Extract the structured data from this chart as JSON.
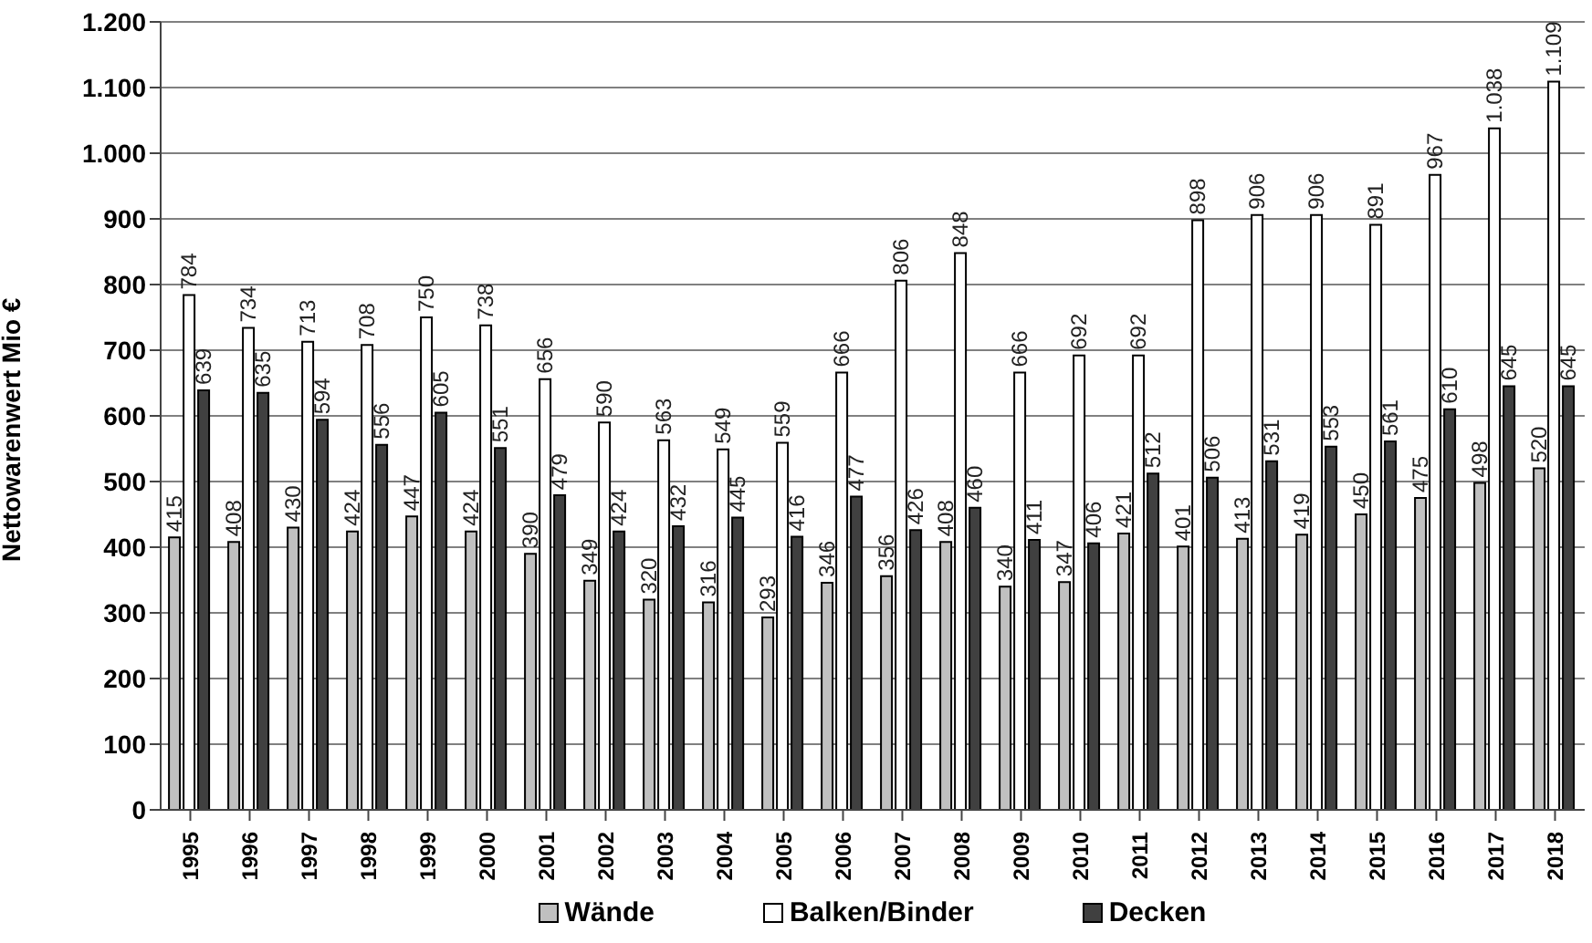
{
  "chart_data": {
    "type": "bar",
    "ylabel": "Nettowarenwert Mio €",
    "categories": [
      "1995",
      "1996",
      "1997",
      "1998",
      "1999",
      "2000",
      "2001",
      "2002",
      "2003",
      "2004",
      "2005",
      "2006",
      "2007",
      "2008",
      "2009",
      "2010",
      "2011",
      "2012",
      "2013",
      "2014",
      "2015",
      "2016",
      "2017",
      "2018"
    ],
    "series": [
      {
        "name": "Wände",
        "color": "#c0c0c0",
        "values": [
          415,
          408,
          430,
          424,
          447,
          424,
          390,
          349,
          320,
          316,
          293,
          346,
          356,
          408,
          340,
          347,
          421,
          401,
          413,
          419,
          450,
          475,
          498,
          520
        ],
        "value_labels": [
          "415",
          "408",
          "430",
          "424",
          "447",
          "424",
          "390",
          "349",
          "320",
          "316",
          "293",
          "346",
          "356",
          "408",
          "340",
          "347",
          "421",
          "401",
          "413",
          "419",
          "450",
          "475",
          "498",
          "520"
        ]
      },
      {
        "name": "Balken/Binder",
        "color": "#ffffff",
        "values": [
          784,
          734,
          713,
          708,
          750,
          738,
          656,
          590,
          563,
          549,
          559,
          666,
          806,
          848,
          666,
          692,
          692,
          898,
          906,
          906,
          891,
          967,
          1038,
          1109
        ],
        "value_labels": [
          "784",
          "734",
          "713",
          "708",
          "750",
          "738",
          "656",
          "590",
          "563",
          "549",
          "559",
          "666",
          "806",
          "848",
          "666",
          "692",
          "692",
          "898",
          "906",
          "906",
          "891",
          "967",
          "1.038",
          "1.109"
        ]
      },
      {
        "name": "Decken",
        "color": "#404040",
        "values": [
          639,
          635,
          594,
          556,
          605,
          551,
          479,
          424,
          432,
          445,
          416,
          477,
          426,
          460,
          411,
          406,
          512,
          506,
          531,
          553,
          561,
          610,
          645,
          645
        ],
        "value_labels": [
          "639",
          "635",
          "594",
          "556",
          "605",
          "551",
          "479",
          "424",
          "432",
          "445",
          "416",
          "477",
          "426",
          "460",
          "411",
          "406",
          "512",
          "506",
          "531",
          "553",
          "561",
          "610",
          "645",
          "645"
        ]
      }
    ],
    "ylim": [
      0,
      1200
    ],
    "yticks": [
      0,
      100,
      200,
      300,
      400,
      500,
      600,
      700,
      800,
      900,
      {
        "value": 1000,
        "label": "1.000"
      },
      {
        "value": 1100,
        "label": "1.100"
      },
      {
        "value": 1200,
        "label": "1.200"
      }
    ],
    "grid": "y",
    "legend": "bottom"
  }
}
